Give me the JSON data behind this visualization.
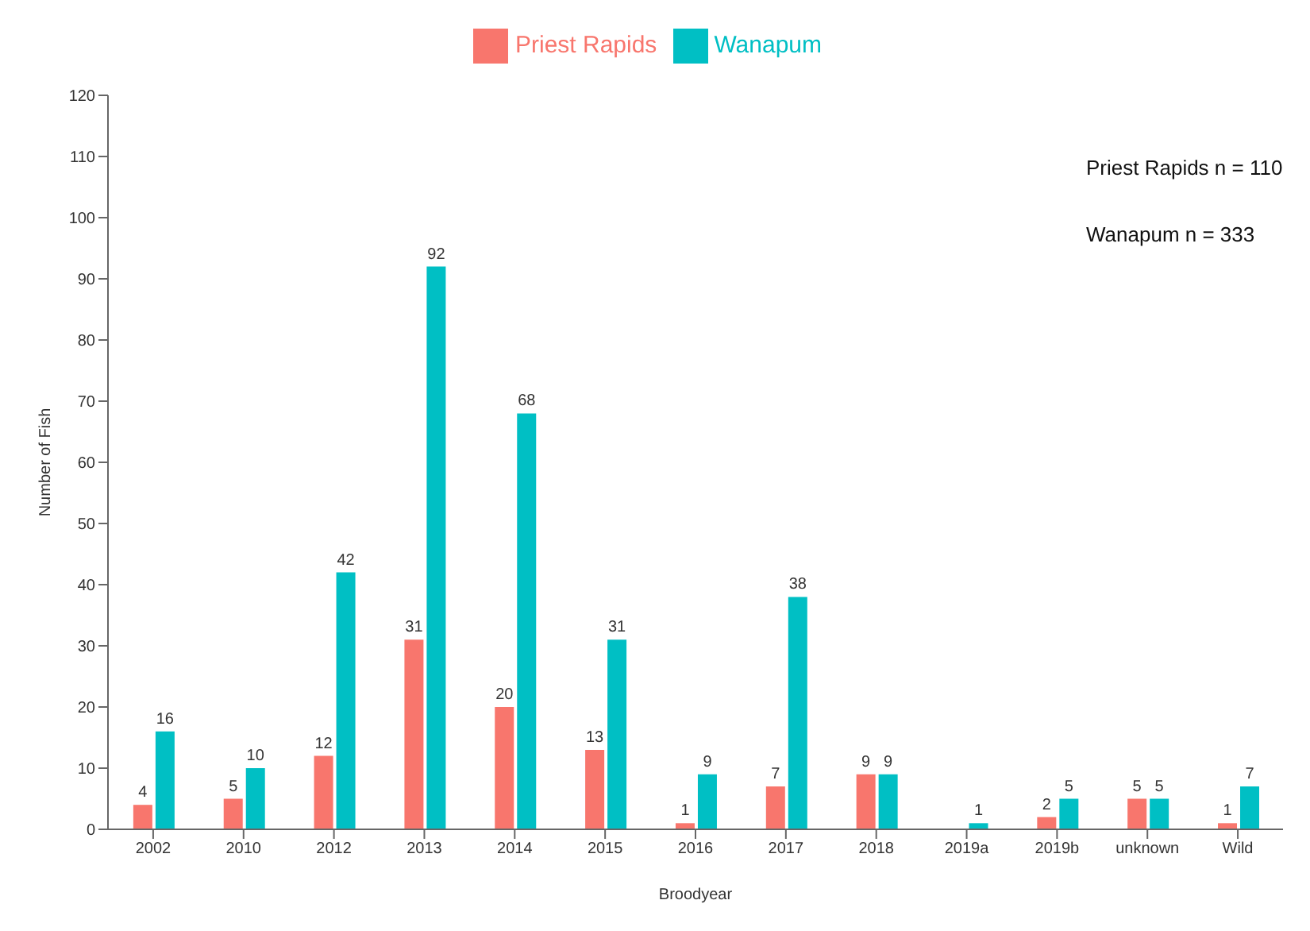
{
  "chart_data": {
    "type": "bar",
    "xlabel": "Broodyear",
    "ylabel": "Number of Fish",
    "categories": [
      "2002",
      "2010",
      "2012",
      "2013",
      "2014",
      "2015",
      "2016",
      "2017",
      "2018",
      "2019a",
      "2019b",
      "unknown",
      "Wild"
    ],
    "series": [
      {
        "name": "Priest Rapids",
        "color": "#f8766d",
        "values": [
          4,
          5,
          12,
          31,
          20,
          13,
          1,
          7,
          9,
          null,
          2,
          5,
          1
        ]
      },
      {
        "name": "Wanapum",
        "color": "#00bfc4",
        "values": [
          16,
          10,
          42,
          92,
          68,
          31,
          9,
          38,
          9,
          1,
          5,
          5,
          7
        ]
      }
    ],
    "ylim": [
      0,
      120
    ],
    "yticks": [
      0,
      10,
      20,
      30,
      40,
      50,
      60,
      70,
      80,
      90,
      100,
      110,
      120
    ],
    "annotations": [
      "Priest Rapids n = 110",
      "Wanapum n = 333"
    ],
    "data_labels": true,
    "legend": "top"
  }
}
